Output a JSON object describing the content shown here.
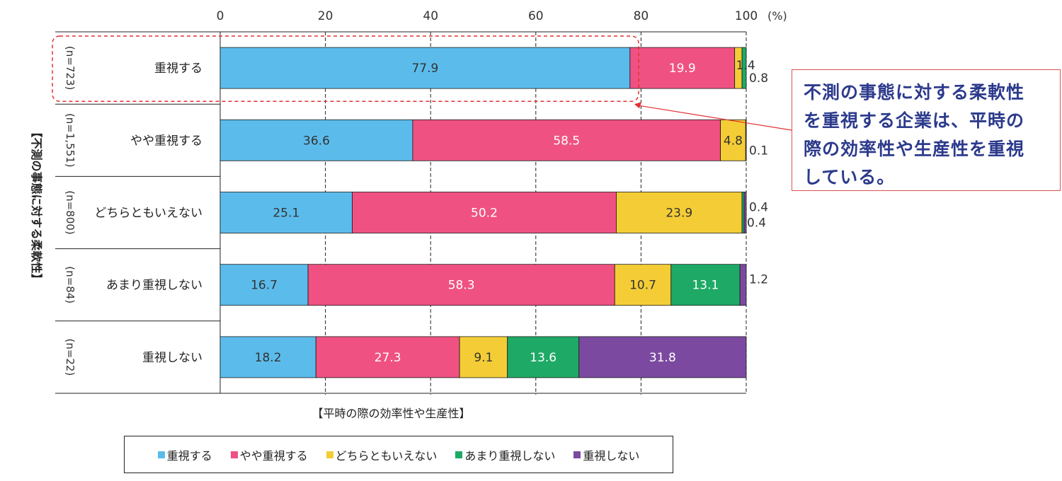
{
  "chart_data": {
    "type": "bar",
    "orientation": "horizontal",
    "stacked": true,
    "x_axis": {
      "ticks": [
        "0",
        "20",
        "40",
        "60",
        "80",
        "100"
      ],
      "unit": "(%)",
      "xlim": [
        0,
        100
      ]
    },
    "xlabel": "【平時の際の効率性や生産性】",
    "ylabel": "【不測の事態に対する柔軟性】",
    "categories": [
      "重視する",
      "やや重視する",
      "どちらともいえない",
      "あまり重視しない",
      "重視しない"
    ],
    "sample_sizes": [
      "(n=723)",
      "(n=1,551)",
      "(n=800)",
      "(n=84)",
      "(n=22)"
    ],
    "series": [
      {
        "name": "重視する",
        "color": "#5bbcec",
        "values": [
          77.9,
          36.6,
          25.1,
          16.7,
          18.2
        ],
        "labels": [
          "77.9",
          "36.6",
          "25.1",
          "16.7",
          "18.2"
        ]
      },
      {
        "name": "やや重視する",
        "color": "#ef5282",
        "values": [
          19.9,
          58.5,
          50.2,
          58.3,
          27.3
        ],
        "labels": [
          "19.9",
          "58.5",
          "50.2",
          "58.3",
          "27.3"
        ]
      },
      {
        "name": "どちらともいえない",
        "color": "#f4cd36",
        "values": [
          1.4,
          4.8,
          23.9,
          10.7,
          9.1
        ],
        "labels": [
          "1.4",
          "4.8",
          "23.9",
          "10.7",
          "9.1"
        ]
      },
      {
        "name": "あまり重視しない",
        "color": "#1eaa66",
        "values": [
          0.8,
          0.1,
          0.4,
          13.1,
          13.6
        ],
        "labels": [
          "0.8",
          "0.1",
          "0.4",
          "13.1",
          "13.6"
        ]
      },
      {
        "name": "重視しない",
        "color": "#7b4aa0",
        "values": [
          0.0,
          0.0,
          0.4,
          1.2,
          31.8
        ],
        "labels": [
          "",
          "",
          "0.4",
          "1.2",
          "31.8"
        ]
      }
    ],
    "grid": true,
    "gridlines": "dashed-vertical",
    "legend_position": "bottom",
    "highlight_row": 0
  },
  "callout": {
    "lines": [
      "不測の事態に対する柔軟性",
      "を重視する企業は、平時の",
      "際の効率性や生産性を重視",
      "している。"
    ],
    "border_color": "#d9534f",
    "text_color": "#2c3a8c"
  },
  "legend": {
    "items": [
      "重視する",
      "やや重視する",
      "どちらともいえない",
      "あまり重視しない",
      "重視しない"
    ],
    "colors": [
      "#5bbcec",
      "#ef5282",
      "#f4cd36",
      "#1eaa66",
      "#7b4aa0"
    ]
  }
}
